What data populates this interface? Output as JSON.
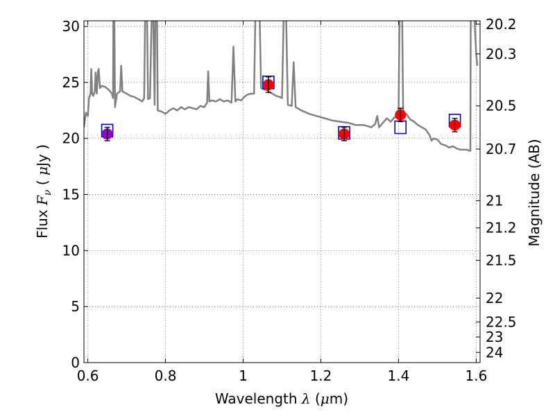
{
  "chart_data": {
    "type": "scatter",
    "xlabel": {
      "prefix": "Wavelength",
      "symbol": "λ",
      "open": "(",
      "mu": "μ",
      "unit": "m)"
    },
    "ylabel": {
      "prefix": "Flux",
      "symbol": "F",
      "sub": "ν",
      "open": "(",
      "mu": "μ",
      "unit": "Jy )"
    },
    "ylabel_right": "Magnitude (AB)",
    "xlim": [
      0.59,
      1.61
    ],
    "ylim": [
      0,
      30.5
    ],
    "grid": true,
    "x_ticks": [
      {
        "value": 0.6,
        "label": "0.6"
      },
      {
        "value": 0.8,
        "label": "0.8"
      },
      {
        "value": 1.0,
        "label": "1"
      },
      {
        "value": 1.2,
        "label": "1.2"
      },
      {
        "value": 1.4,
        "label": "1.4"
      },
      {
        "value": 1.6,
        "label": "1.6"
      }
    ],
    "y_ticks": [
      {
        "value": 0,
        "label": "0"
      },
      {
        "value": 5,
        "label": "5"
      },
      {
        "value": 10,
        "label": "10"
      },
      {
        "value": 15,
        "label": "15"
      },
      {
        "value": 20,
        "label": "20"
      },
      {
        "value": 25,
        "label": "25"
      },
      {
        "value": 30,
        "label": "30"
      }
    ],
    "mag_ticks": [
      {
        "value": 20.2,
        "label": "20.2"
      },
      {
        "value": 20.3,
        "label": "20.3"
      },
      {
        "value": 20.5,
        "label": "20.5"
      },
      {
        "value": 20.7,
        "label": "20.7"
      },
      {
        "value": 21,
        "label": "21"
      },
      {
        "value": 21.2,
        "label": "21.2"
      },
      {
        "value": 21.5,
        "label": "21.5"
      },
      {
        "value": 22,
        "label": "22"
      },
      {
        "value": 22.5,
        "label": "22.5"
      },
      {
        "value": 23,
        "label": "23"
      },
      {
        "value": 24,
        "label": "24"
      }
    ],
    "model_spectrum": {
      "color": "#808080",
      "points": [
        [
          0.59,
          21.0
        ],
        [
          0.595,
          22.3
        ],
        [
          0.6,
          22.0
        ],
        [
          0.603,
          23.6
        ],
        [
          0.607,
          24.0
        ],
        [
          0.609,
          26.2
        ],
        [
          0.611,
          24.0
        ],
        [
          0.614,
          23.8
        ],
        [
          0.618,
          24.2
        ],
        [
          0.62,
          25.9
        ],
        [
          0.623,
          24.0
        ],
        [
          0.626,
          26.0
        ],
        [
          0.628,
          26.2
        ],
        [
          0.631,
          24.5
        ],
        [
          0.636,
          24.7
        ],
        [
          0.645,
          24.6
        ],
        [
          0.655,
          24.3
        ],
        [
          0.662,
          24.0
        ],
        [
          0.665,
          23.6
        ],
        [
          0.666,
          32.0
        ],
        [
          0.668,
          32.0
        ],
        [
          0.67,
          22.8
        ],
        [
          0.675,
          24.0
        ],
        [
          0.683,
          24.2
        ],
        [
          0.686,
          26.5
        ],
        [
          0.689,
          24.2
        ],
        [
          0.7,
          24.0
        ],
        [
          0.71,
          23.8
        ],
        [
          0.72,
          23.7
        ],
        [
          0.73,
          23.5
        ],
        [
          0.74,
          23.3
        ],
        [
          0.745,
          23.6
        ],
        [
          0.748,
          32.0
        ],
        [
          0.752,
          32.0
        ],
        [
          0.755,
          23.5
        ],
        [
          0.76,
          23.6
        ],
        [
          0.765,
          32.0
        ],
        [
          0.768,
          32.0
        ],
        [
          0.772,
          23.0
        ],
        [
          0.774,
          32.0
        ],
        [
          0.778,
          32.0
        ],
        [
          0.78,
          22.5
        ],
        [
          0.79,
          22.4
        ],
        [
          0.8,
          22.2
        ],
        [
          0.81,
          22.5
        ],
        [
          0.82,
          22.7
        ],
        [
          0.83,
          22.5
        ],
        [
          0.84,
          22.8
        ],
        [
          0.85,
          22.6
        ],
        [
          0.86,
          22.8
        ],
        [
          0.87,
          22.7
        ],
        [
          0.88,
          22.6
        ],
        [
          0.89,
          22.9
        ],
        [
          0.9,
          22.8
        ],
        [
          0.907,
          23.2
        ],
        [
          0.91,
          26.0
        ],
        [
          0.913,
          23.3
        ],
        [
          0.92,
          23.4
        ],
        [
          0.93,
          23.3
        ],
        [
          0.94,
          23.5
        ],
        [
          0.95,
          23.3
        ],
        [
          0.96,
          23.4
        ],
        [
          0.97,
          23.2
        ],
        [
          0.975,
          28.2
        ],
        [
          0.98,
          23.3
        ],
        [
          0.985,
          23.5
        ],
        [
          0.995,
          23.4
        ],
        [
          1.0,
          23.6
        ],
        [
          1.01,
          23.9
        ],
        [
          1.02,
          24.0
        ],
        [
          1.028,
          24.0
        ],
        [
          1.032,
          32.0
        ],
        [
          1.042,
          32.0
        ],
        [
          1.046,
          24.5
        ],
        [
          1.06,
          24.3
        ],
        [
          1.075,
          24.0
        ],
        [
          1.085,
          23.8
        ],
        [
          1.095,
          23.7
        ],
        [
          1.1,
          23.6
        ],
        [
          1.105,
          32.0
        ],
        [
          1.11,
          32.0
        ],
        [
          1.115,
          23.0
        ],
        [
          1.125,
          22.9
        ],
        [
          1.13,
          26.8
        ],
        [
          1.135,
          22.8
        ],
        [
          1.15,
          22.5
        ],
        [
          1.17,
          22.2
        ],
        [
          1.19,
          22.0
        ],
        [
          1.21,
          21.8
        ],
        [
          1.23,
          21.6
        ],
        [
          1.25,
          21.5
        ],
        [
          1.27,
          21.4
        ],
        [
          1.29,
          21.2
        ],
        [
          1.31,
          21.2
        ],
        [
          1.33,
          21.0
        ],
        [
          1.34,
          21.3
        ],
        [
          1.345,
          22.0
        ],
        [
          1.35,
          21.0
        ],
        [
          1.36,
          21.4
        ],
        [
          1.37,
          21.8
        ],
        [
          1.38,
          21.5
        ],
        [
          1.39,
          21.9
        ],
        [
          1.4,
          21.8
        ],
        [
          1.403,
          32.0
        ],
        [
          1.409,
          32.0
        ],
        [
          1.412,
          22.0
        ],
        [
          1.42,
          22.2
        ],
        [
          1.43,
          21.7
        ],
        [
          1.44,
          21.5
        ],
        [
          1.45,
          21.2
        ],
        [
          1.46,
          21.0
        ],
        [
          1.47,
          20.8
        ],
        [
          1.48,
          20.3
        ],
        [
          1.485,
          19.8
        ],
        [
          1.49,
          20.0
        ],
        [
          1.5,
          19.9
        ],
        [
          1.51,
          19.5
        ],
        [
          1.52,
          19.4
        ],
        [
          1.53,
          19.2
        ],
        [
          1.54,
          19.3
        ],
        [
          1.55,
          19.1
        ],
        [
          1.56,
          19.0
        ],
        [
          1.575,
          19.0
        ],
        [
          1.585,
          18.9
        ],
        [
          1.586,
          32.0
        ],
        [
          1.594,
          32.0
        ],
        [
          1.6,
          27.5
        ],
        [
          1.603,
          26.5
        ]
      ]
    },
    "model_points": {
      "color": "#0000cc",
      "points": [
        {
          "x": 0.65,
          "y": 20.7
        },
        {
          "x": 1.065,
          "y": 25.0
        },
        {
          "x": 1.26,
          "y": 20.5
        },
        {
          "x": 1.405,
          "y": 21.0
        },
        {
          "x": 1.545,
          "y": 21.6
        }
      ]
    },
    "observed": {
      "color": "#ff0000",
      "upper_color": "#9900cc",
      "points": [
        {
          "x": 0.65,
          "y": 20.4,
          "err": 0.6,
          "upper": true
        },
        {
          "x": 1.065,
          "y": 24.8,
          "err": 0.7,
          "upper": false
        },
        {
          "x": 1.26,
          "y": 20.4,
          "err": 0.6,
          "upper": false
        },
        {
          "x": 1.405,
          "y": 22.1,
          "err": 0.6,
          "upper": false
        },
        {
          "x": 1.545,
          "y": 21.2,
          "err": 0.6,
          "upper": false
        }
      ]
    }
  }
}
